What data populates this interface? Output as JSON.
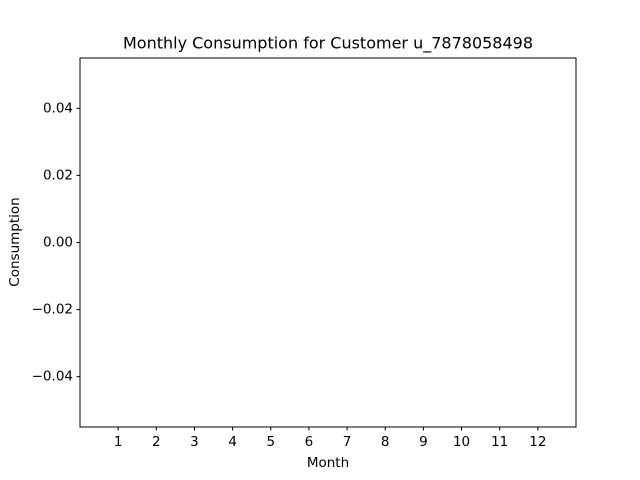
{
  "chart_data": {
    "type": "bar",
    "title": "Monthly Consumption for Customer u_7878058498",
    "x_label": "Month",
    "y_label": "Consumption",
    "categories": [
      "1",
      "2",
      "3",
      "4",
      "5",
      "6",
      "7",
      "8",
      "9",
      "10",
      "11",
      "12"
    ],
    "values": [
      0,
      0,
      0,
      0,
      0,
      0,
      0,
      0,
      0,
      0,
      0,
      0
    ],
    "color": "#1f77b4",
    "ylim": [
      -0.055,
      0.055
    ],
    "yticks": [
      {
        "value": -0.04,
        "label": "−0.04"
      },
      {
        "value": -0.02,
        "label": "−0.02"
      },
      {
        "value": 0,
        "label": "0.00"
      },
      {
        "value": 0.02,
        "label": "0.02"
      },
      {
        "value": 0.04,
        "label": "0.04"
      }
    ],
    "grid": false
  }
}
